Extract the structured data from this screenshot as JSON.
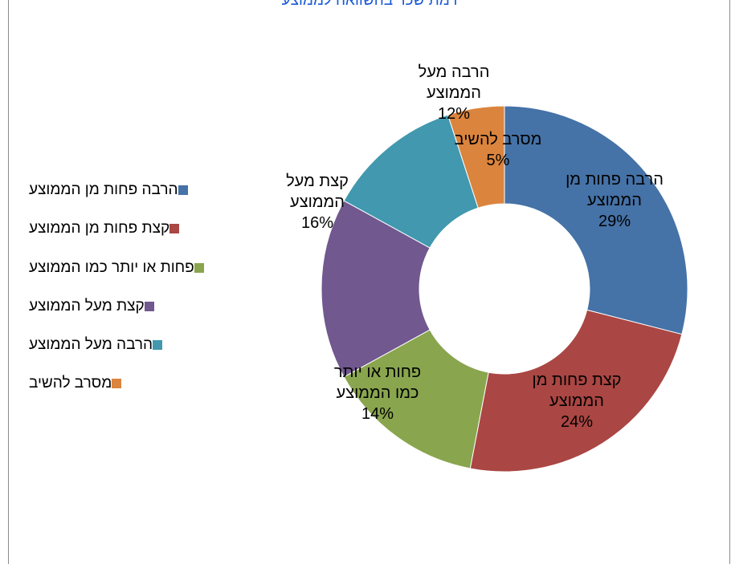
{
  "chart_data": {
    "type": "pie",
    "title": "רמת שכר בהשוואה לממוצע",
    "slices": [
      {
        "label": "הרבה פחות מן הממוצע",
        "label_lines": [
          "הרבה פחות מן",
          "הממוצע"
        ],
        "value": 29,
        "display": "29%",
        "color": "#4572A7"
      },
      {
        "label": "קצת פחות מן הממוצע",
        "label_lines": [
          "קצת פחות מן",
          "הממוצע"
        ],
        "value": 24,
        "display": "24%",
        "color": "#AA4643"
      },
      {
        "label": "פחות או יותר כמו הממוצע",
        "label_lines": [
          "פחות או יותר",
          "כמו הממוצע"
        ],
        "value": 14,
        "display": "14%",
        "color": "#89A54E"
      },
      {
        "label": "קצת מעל הממוצע",
        "label_lines": [
          "קצת מעל",
          "הממוצע"
        ],
        "value": 16,
        "display": "16%",
        "color": "#71588F"
      },
      {
        "label": "הרבה מעל הממוצע",
        "label_lines": [
          "הרבה מעל",
          "הממוצע"
        ],
        "value": 12,
        "display": "12%",
        "color": "#4198AF"
      },
      {
        "label": "מסרב להשיב",
        "label_lines": [
          "מסרב להשיב"
        ],
        "value": 5,
        "display": "5%",
        "color": "#DB843D"
      }
    ],
    "donut": true,
    "legend_position": "left"
  }
}
